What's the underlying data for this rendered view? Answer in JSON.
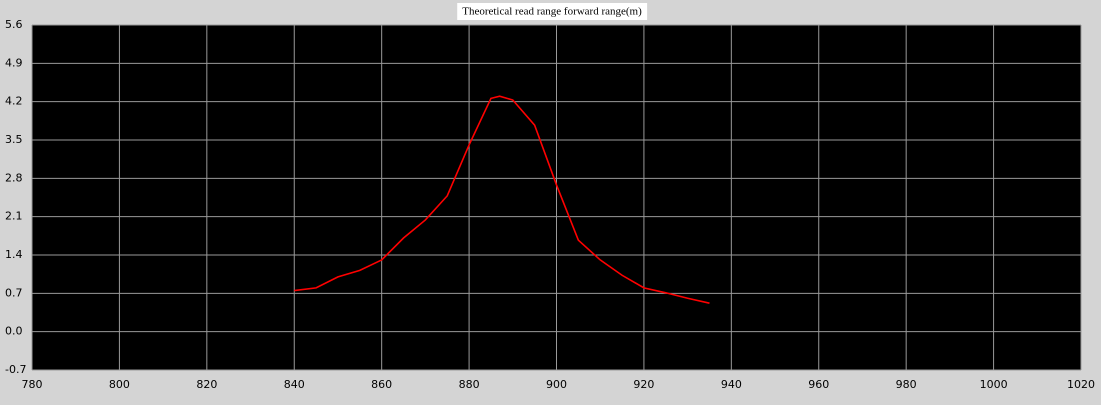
{
  "chart_data": {
    "type": "line",
    "title": "Theoretical read range forward range(m)",
    "x": [
      840,
      845,
      850,
      855,
      860,
      865,
      870,
      875,
      880,
      885,
      887,
      890,
      895,
      900,
      905,
      910,
      915,
      920,
      925,
      930,
      935
    ],
    "series": [
      {
        "color": "#ff0000",
        "values": [
          0.75,
          0.8,
          1.0,
          1.12,
          1.31,
          1.71,
          2.04,
          2.48,
          3.41,
          4.26,
          4.3,
          4.23,
          3.77,
          2.68,
          1.67,
          1.31,
          1.03,
          0.8,
          0.71,
          0.61,
          0.52
        ]
      }
    ],
    "xlim": [
      780,
      1020
    ],
    "xticks": [
      780,
      800,
      820,
      840,
      860,
      880,
      900,
      920,
      940,
      960,
      980,
      1000,
      1020
    ],
    "ylim": [
      -0.7,
      5.6
    ],
    "yticks": [
      -0.7,
      {
        "value": 0,
        "label": "0.0"
      },
      0.7,
      1.4,
      2.1,
      2.8,
      3.5,
      4.2,
      4.9,
      5.6
    ],
    "grid": true
  }
}
